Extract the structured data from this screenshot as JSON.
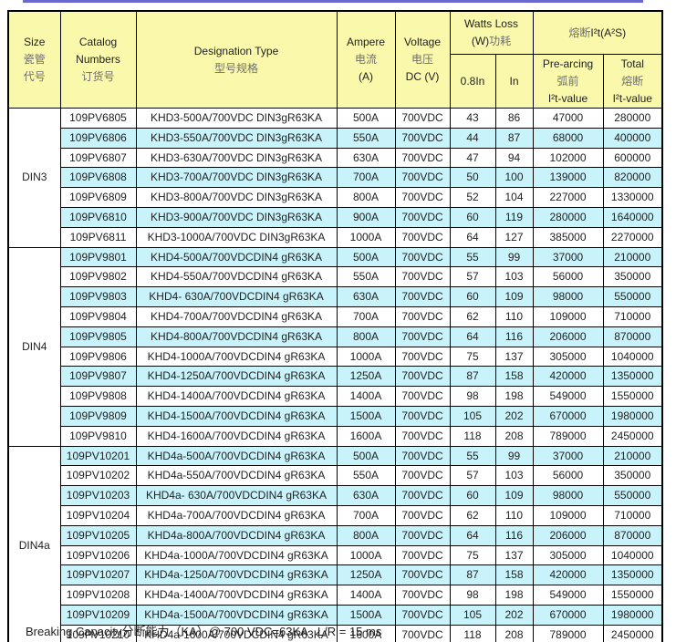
{
  "colors": {
    "accent_bar": "#6b68cf",
    "header_bg": "#f9f8ab",
    "stripe_bg": "#c8f3fb",
    "border": "#000000"
  },
  "page": {
    "footer": "Breaking Capacity分断能力（KA）@ 700 VDC=63KA   L/R = 15 ms"
  },
  "table": {
    "header": {
      "size_en": "Size",
      "size_cn1": "瓷管",
      "size_cn2": "代号",
      "catalog_en1": "Catalog",
      "catalog_en2": "Numbers",
      "catalog_cn": "订货号",
      "designation_en": "Designation Type",
      "designation_cn": "型号规格",
      "ampere_en": "Ampere",
      "ampere_cn": "电流",
      "ampere_unit": "(A)",
      "voltage_en": "Voltage",
      "voltage_cn": "电压",
      "voltage_unit": "DC (V)",
      "watts_en": "Watts Loss",
      "watts_unit": "(W)",
      "watts_cn": "功耗",
      "watts_sub_08": "0.8In",
      "watts_sub_in": "In",
      "i2t_cn": "熔断",
      "i2t_en": "I²t(A²S)",
      "prearcing_en": "Pre-arcing",
      "prearcing_cn": "弧前",
      "prearcing_unit": "I²t-value",
      "total_en": "Total",
      "total_cn": "熔断",
      "total_unit": "I²t-value"
    },
    "groups": [
      {
        "size": "DIN3",
        "rows": [
          [
            "109PV6805",
            "KHD3-500A/700VDC DIN3gR63KA",
            "500A",
            "700VDC",
            "43",
            "86",
            "47000",
            "280000"
          ],
          [
            "109PV6806",
            "KHD3-550A/700VDC DIN3gR63KA",
            "550A",
            "700VDC",
            "44",
            "87",
            "68000",
            "400000"
          ],
          [
            "109PV6807",
            "KHD3-630A/700VDC DIN3gR63KA",
            "630A",
            "700VDC",
            "47",
            "94",
            "102000",
            "600000"
          ],
          [
            "109PV6808",
            "KHD3-700A/700VDC DIN3gR63KA",
            "700A",
            "700VDC",
            "50",
            "100",
            "139000",
            "820000"
          ],
          [
            "109PV6809",
            "KHD3-800A/700VDC DIN3gR63KA",
            "800A",
            "700VDC",
            "52",
            "104",
            "227000",
            "1330000"
          ],
          [
            "109PV6810",
            "KHD3-900A/700VDC DIN3gR63KA",
            "900A",
            "700VDC",
            "60",
            "119",
            "280000",
            "1640000"
          ],
          [
            "109PV6811",
            "KHD3-1000A/700VDC DIN3gR63KA",
            "1000A",
            "700VDC",
            "64",
            "127",
            "385000",
            "2270000"
          ]
        ]
      },
      {
        "size": "DIN4",
        "rows": [
          [
            "109PV9801",
            "KHD4-500A/700VDCDIN4 gR63KA",
            "500A",
            "700VDC",
            "55",
            "99",
            "37000",
            "210000"
          ],
          [
            "109PV9802",
            "KHD4-550A/700VDCDIN4 gR63KA",
            "550A",
            "700VDC",
            "57",
            "103",
            "56000",
            "350000"
          ],
          [
            "109PV9803",
            "KHD4- 630A/700VDCDIN4 gR63KA",
            "630A",
            "700VDC",
            "60",
            "109",
            "98000",
            "550000"
          ],
          [
            "109PV9804",
            "KHD4-700A/700VDCDIN4 gR63KA",
            "700A",
            "700VDC",
            "62",
            "110",
            "109000",
            "710000"
          ],
          [
            "109PV9805",
            "KHD4-800A/700VDCDIN4 gR63KA",
            "800A",
            "700VDC",
            "64",
            "116",
            "206000",
            "870000"
          ],
          [
            "109PV9806",
            "KHD4-1000A/700VDCDIN4 gR63KA",
            "1000A",
            "700VDC",
            "75",
            "137",
            "305000",
            "1040000"
          ],
          [
            "109PV9807",
            "KHD4-1250A/700VDCDIN4 gR63KA",
            "1250A",
            "700VDC",
            "87",
            "158",
            "420000",
            "1350000"
          ],
          [
            "109PV9808",
            "KHD4-1400A/700VDCDIN4 gR63KA",
            "1400A",
            "700VDC",
            "98",
            "198",
            "549000",
            "1550000"
          ],
          [
            "109PV9809",
            "KHD4-1500A/700VDCDIN4 gR63KA",
            "1500A",
            "700VDC",
            "105",
            "202",
            "670000",
            "1980000"
          ],
          [
            "109PV9810",
            "KHD4-1600A/700VDCDIN4 gR63KA",
            "1600A",
            "700VDC",
            "118",
            "208",
            "789000",
            "2450000"
          ]
        ]
      },
      {
        "size": "DIN4a",
        "rows": [
          [
            "109PV10201",
            "KHD4a-500A/700VDCDIN4 gR63KA",
            "500A",
            "700VDC",
            "55",
            "99",
            "37000",
            "210000"
          ],
          [
            "109PV10202",
            "KHD4a-550A/700VDCDIN4 gR63KA",
            "550A",
            "700VDC",
            "57",
            "103",
            "56000",
            "350000"
          ],
          [
            "109PV10203",
            "KHD4a- 630A/700VDCDIN4 gR63KA",
            "630A",
            "700VDC",
            "60",
            "109",
            "98000",
            "550000"
          ],
          [
            "109PV10204",
            "KHD4a-700A/700VDCDIN4 gR63KA",
            "700A",
            "700VDC",
            "62",
            "110",
            "109000",
            "710000"
          ],
          [
            "109PV10205",
            "KHD4a-800A/700VDCDIN4 gR63KA",
            "800A",
            "700VDC",
            "64",
            "116",
            "206000",
            "870000"
          ],
          [
            "109PV10206",
            "KHD4a-1000A/700VDCDIN4 gR63KA",
            "1000A",
            "700VDC",
            "75",
            "137",
            "305000",
            "1040000"
          ],
          [
            "109PV10207",
            "KHD4a-1250A/700VDCDIN4 gR63KA",
            "1250A",
            "700VDC",
            "87",
            "158",
            "420000",
            "1350000"
          ],
          [
            "109PV10208",
            "KHD4a-1400A/700VDCDIN4 gR63KA",
            "1400A",
            "700VDC",
            "98",
            "198",
            "549000",
            "1550000"
          ],
          [
            "109PV10209",
            "KHD4a-1500A/700VDCDIN4 gR63KA",
            "1500A",
            "700VDC",
            "105",
            "202",
            "670000",
            "1980000"
          ],
          [
            "109PV10210",
            "KHD4a-1600A/700VDCDIN4 gR63KA",
            "1600A",
            "700VDC",
            "118",
            "208",
            "789000",
            "2450000"
          ]
        ]
      }
    ]
  }
}
